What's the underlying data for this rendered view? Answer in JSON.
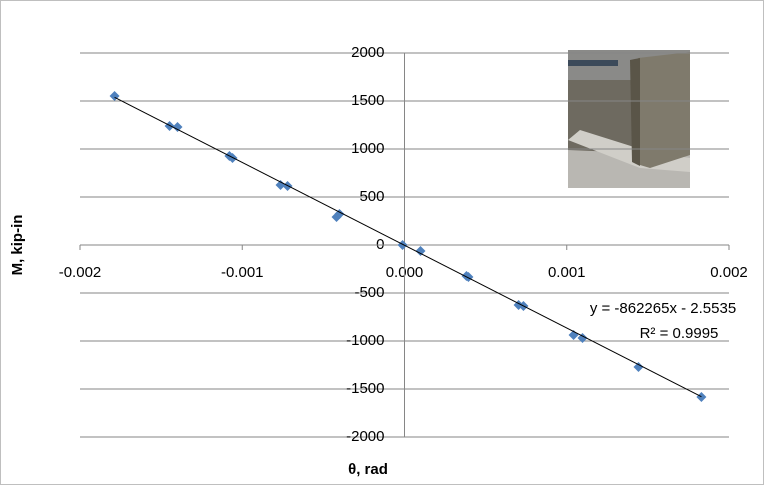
{
  "chart_data": {
    "type": "scatter",
    "x_label": "θ, rad",
    "y_label": "M, kip-in",
    "x": [
      -0.001787,
      -0.001448,
      -0.001399,
      -0.001079,
      -0.00106,
      -0.000764,
      -0.000721,
      -0.000419,
      -0.000401,
      -1.2e-05,
      9.86e-05,
      0.000382,
      0.000394,
      0.000703,
      0.000733,
      0.001042,
      0.001097,
      0.001442,
      0.00183
    ],
    "series": [
      {
        "color": "#4f81bd",
        "values": [
          1552,
          1240,
          1229,
          927,
          906,
          625,
          615,
          292,
          323,
          0,
          -63,
          -323,
          -333,
          -625,
          -635,
          -938,
          -969,
          -1271,
          -1583
        ]
      }
    ],
    "trendline": {
      "slope": -862265,
      "intercept": -2.5535,
      "color": "#000000",
      "equation_label": "y = -862265x - 2.5535",
      "r2_label": "R² = 0.9995"
    },
    "xlim": [
      -0.002,
      0.002
    ],
    "xticks": [
      {
        "value": -0.002,
        "label": "-0.002"
      },
      {
        "value": -0.001,
        "label": "-0.001"
      },
      {
        "value": 0,
        "label": "0.000"
      },
      {
        "value": 0.001,
        "label": "0.001"
      },
      {
        "value": 0.002,
        "label": "0.002"
      }
    ],
    "ylim": [
      -2000,
      2000
    ],
    "yticks": [
      -2000,
      -1500,
      -1000,
      -500,
      0,
      500,
      1000,
      1500,
      2000
    ],
    "grid": true
  }
}
